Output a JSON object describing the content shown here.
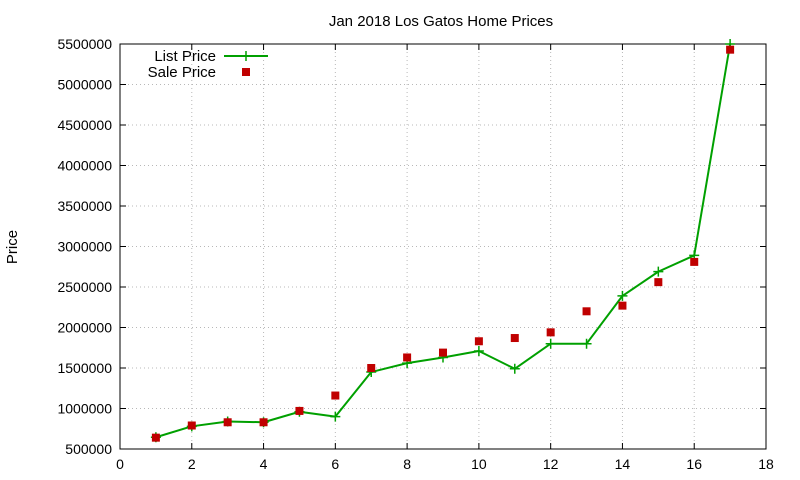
{
  "chart_data": {
    "type": "line",
    "title": "Jan 2018 Los Gatos Home Prices",
    "xlabel": "",
    "ylabel": "Price",
    "xlim": [
      0,
      18
    ],
    "ylim": [
      500000,
      5500000
    ],
    "xticks": [
      0,
      2,
      4,
      6,
      8,
      10,
      12,
      14,
      16,
      18
    ],
    "yticks": [
      500000,
      1000000,
      1500000,
      2000000,
      2500000,
      3000000,
      3500000,
      4000000,
      4500000,
      5000000,
      5500000
    ],
    "grid": true,
    "legend_position": "top-left",
    "x": [
      1,
      2,
      3,
      4,
      5,
      6,
      7,
      8,
      9,
      10,
      11,
      12,
      13,
      14,
      15,
      16,
      17
    ],
    "series": [
      {
        "name": "List Price",
        "style": "line-with-plus-markers",
        "color": "#00a000",
        "values": [
          645000,
          780000,
          840000,
          830000,
          960000,
          900000,
          1450000,
          1560000,
          1630000,
          1710000,
          1490000,
          1800000,
          1800000,
          2390000,
          2690000,
          2890000,
          5500000
        ]
      },
      {
        "name": "Sale Price",
        "style": "square-markers",
        "color": "#c00000",
        "values": [
          640000,
          790000,
          830000,
          830000,
          970000,
          1160000,
          1500000,
          1630000,
          1690000,
          1830000,
          1870000,
          1940000,
          2200000,
          2270000,
          2560000,
          2810000,
          5430000
        ]
      }
    ]
  }
}
